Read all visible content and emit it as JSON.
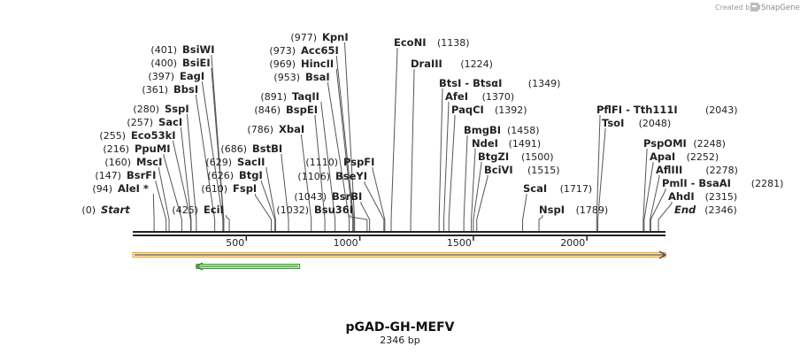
{
  "credit": {
    "prefix": "Created by",
    "brand": "SnapGene"
  },
  "map": {
    "name": "pGAD-GH-MEFV",
    "length_label": "2346 bp",
    "length": 2346,
    "ticks": [
      "500",
      "1000",
      "1500",
      "2000"
    ],
    "tick_values": [
      500,
      1000,
      1500,
      2000
    ]
  },
  "sites": [
    {
      "pos": "(0)",
      "name": "Start",
      "bp": 0,
      "italic": true
    },
    {
      "pos": "(94)",
      "name": "AleI *",
      "bp": 94
    },
    {
      "pos": "(147)",
      "name": "BsrFI",
      "bp": 147
    },
    {
      "pos": "(160)",
      "name": "MscI",
      "bp": 160
    },
    {
      "pos": "(216)",
      "name": "PpuMI",
      "bp": 216
    },
    {
      "pos": "(255)",
      "name": "Eco53kI",
      "bp": 255
    },
    {
      "pos": "(257)",
      "name": "SacI",
      "bp": 257
    },
    {
      "pos": "(280)",
      "name": "SspI",
      "bp": 280
    },
    {
      "pos": "(361)",
      "name": "BbsI",
      "bp": 361
    },
    {
      "pos": "(397)",
      "name": "EagI",
      "bp": 397
    },
    {
      "pos": "(400)",
      "name": "BsiEI",
      "bp": 400
    },
    {
      "pos": "(401)",
      "name": "BsiWI",
      "bp": 401
    },
    {
      "pos": "(425)",
      "name": "EciI",
      "bp": 425
    },
    {
      "pos": "(610)",
      "name": "FspI",
      "bp": 610
    },
    {
      "pos": "(626)",
      "name": "BtgI",
      "bp": 626
    },
    {
      "pos": "(629)",
      "name": "SacII",
      "bp": 629
    },
    {
      "pos": "(686)",
      "name": "BstBI",
      "bp": 686
    },
    {
      "pos": "(786)",
      "name": "XbaI",
      "bp": 786
    },
    {
      "pos": "(846)",
      "name": "BspEI",
      "bp": 846
    },
    {
      "pos": "(891)",
      "name": "TaqII",
      "bp": 891
    },
    {
      "pos": "(953)",
      "name": "BsaI",
      "bp": 953
    },
    {
      "pos": "(969)",
      "name": "HincII",
      "bp": 969
    },
    {
      "pos": "(973)",
      "name": "Acc65I",
      "bp": 973
    },
    {
      "pos": "(977)",
      "name": "KpnI",
      "bp": 977
    },
    {
      "pos": "(1032)",
      "name": "Bsu36I",
      "bp": 1032
    },
    {
      "pos": "(1043)",
      "name": "BsrBI",
      "bp": 1043
    },
    {
      "pos": "(1106)",
      "name": "BseYI",
      "bp": 1106
    },
    {
      "pos": "(1110)",
      "name": "PspFI",
      "bp": 1110
    },
    {
      "pos": "(1138)",
      "name": "EcoNI",
      "bp": 1138
    },
    {
      "pos": "(1224)",
      "name": "DraIII",
      "bp": 1224
    },
    {
      "pos": "(1349)",
      "name": "BtsI - BtsαI",
      "bp": 1349
    },
    {
      "pos": "(1370)",
      "name": "AfeI",
      "bp": 1370
    },
    {
      "pos": "(1392)",
      "name": "PaqCI",
      "bp": 1392
    },
    {
      "pos": "(1458)",
      "name": "BmgBI",
      "bp": 1458
    },
    {
      "pos": "(1491)",
      "name": "NdeI",
      "bp": 1491
    },
    {
      "pos": "(1500)",
      "name": "BtgZI",
      "bp": 1500
    },
    {
      "pos": "(1515)",
      "name": "BciVI",
      "bp": 1515
    },
    {
      "pos": "(1717)",
      "name": "ScaI",
      "bp": 1717
    },
    {
      "pos": "(1789)",
      "name": "NspI",
      "bp": 1789
    },
    {
      "pos": "(2043)",
      "name": "PflFI - Tth111I",
      "bp": 2043
    },
    {
      "pos": "(2048)",
      "name": "TsoI",
      "bp": 2048
    },
    {
      "pos": "(2248)",
      "name": "PspOMI",
      "bp": 2248
    },
    {
      "pos": "(2252)",
      "name": "ApaI",
      "bp": 2252
    },
    {
      "pos": "(2278)",
      "name": "AflIII",
      "bp": 2278
    },
    {
      "pos": "(2281)",
      "name": "PmlI - BsaAI",
      "bp": 2281
    },
    {
      "pos": "(2315)",
      "name": "AhdI",
      "bp": 2315
    },
    {
      "pos": "(2346)",
      "name": "End",
      "bp": 2346,
      "italic": true
    }
  ],
  "features": [
    {
      "name": "orange-feature",
      "start": 0,
      "end": 2346,
      "direction": "forward",
      "color": "#f0a020",
      "fill": "#fde9c0"
    },
    {
      "name": "green-feature",
      "start": 280,
      "end": 735,
      "direction": "reverse",
      "color": "#2da02d",
      "fill": "#c6f0b0"
    }
  ],
  "colors": {
    "backbone": "#222222",
    "line": "#555555",
    "text": "#222222"
  }
}
